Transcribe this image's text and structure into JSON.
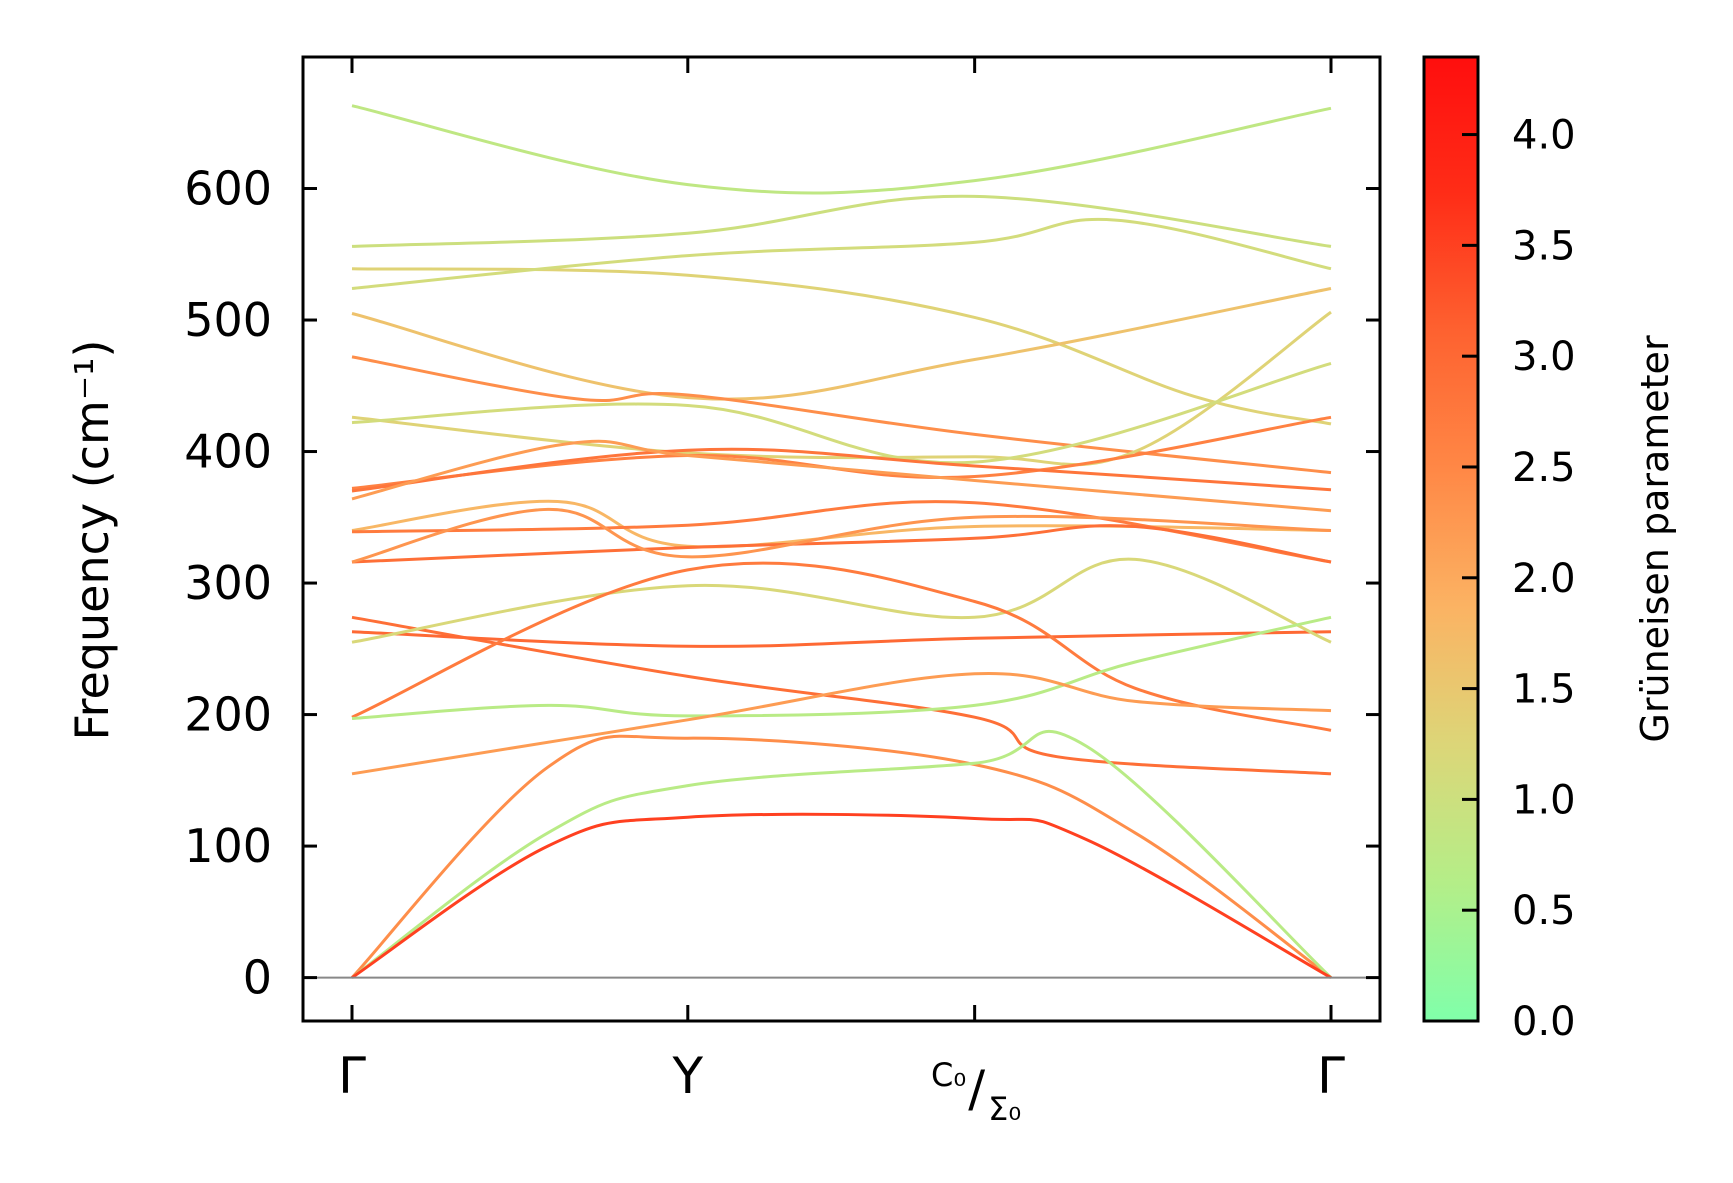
{
  "chart_data": {
    "type": "line",
    "subtype": "phonon-band-structure",
    "ylabel": "Frequency (cm⁻¹)",
    "ylim": [
      -33,
      700
    ],
    "yticks": [
      0,
      100,
      200,
      300,
      400,
      500,
      600
    ],
    "x_ticks": [
      {
        "label": "Γ",
        "x": 0.0
      },
      {
        "label": "Y",
        "x": 0.343
      },
      {
        "label": "C₀/Σ₀",
        "x": 0.636
      },
      {
        "label": "Γ",
        "x": 1.0
      }
    ],
    "grid": false,
    "zero_line": true,
    "colorbar": {
      "label": "Grüneisen parameter",
      "range": [
        0.0,
        4.35
      ],
      "ticks": [
        "0.0",
        "0.5",
        "1.0",
        "1.5",
        "2.0",
        "2.5",
        "3.0",
        "3.5",
        "4.0"
      ],
      "colormap": [
        "#80ffaa",
        "#b4ee88",
        "#dcd678",
        "#fbb363",
        "#ff8846",
        "#fe6230",
        "#ff2d17",
        "#ff0e0e"
      ]
    },
    "series": [
      {
        "points": [
          [
            0,
            663
          ],
          [
            0.343,
            603
          ],
          [
            0.636,
            606
          ],
          [
            1,
            661
          ]
        ],
        "gamma": 0.8
      },
      {
        "points": [
          [
            0,
            556
          ],
          [
            0.343,
            566
          ],
          [
            0.636,
            594
          ],
          [
            1,
            556
          ]
        ],
        "gamma": 1.0
      },
      {
        "points": [
          [
            0,
            539
          ],
          [
            0.343,
            534
          ],
          [
            0.636,
            502
          ],
          [
            0.86,
            442
          ],
          [
            1,
            421
          ]
        ],
        "gamma": 1.3
      },
      {
        "points": [
          [
            0,
            524
          ],
          [
            0.343,
            549
          ],
          [
            0.636,
            559
          ],
          [
            0.78,
            576
          ],
          [
            1,
            539
          ]
        ],
        "gamma": 1.1
      },
      {
        "points": [
          [
            0,
            505
          ],
          [
            0.343,
            441
          ],
          [
            0.636,
            470
          ],
          [
            1,
            524
          ]
        ],
        "gamma": 1.6
      },
      {
        "points": [
          [
            0,
            472
          ],
          [
            0.23,
            440
          ],
          [
            0.343,
            443
          ],
          [
            0.636,
            413
          ],
          [
            1,
            384
          ]
        ],
        "gamma": 2.4
      },
      {
        "points": [
          [
            0,
            426
          ],
          [
            0.343,
            399
          ],
          [
            0.636,
            396
          ],
          [
            0.8,
            400
          ],
          [
            1,
            506
          ]
        ],
        "gamma": 1.3
      },
      {
        "points": [
          [
            0,
            422
          ],
          [
            0.343,
            435
          ],
          [
            0.636,
            392
          ],
          [
            1,
            467
          ]
        ],
        "gamma": 1.1
      },
      {
        "points": [
          [
            0,
            372
          ],
          [
            0.343,
            397
          ],
          [
            0.636,
            381
          ],
          [
            1,
            426
          ]
        ],
        "gamma": 2.6
      },
      {
        "points": [
          [
            0,
            370
          ],
          [
            0.343,
            401
          ],
          [
            0.636,
            389
          ],
          [
            1,
            371
          ]
        ],
        "gamma": 2.8
      },
      {
        "points": [
          [
            0,
            364
          ],
          [
            0.22,
            406
          ],
          [
            0.343,
            397
          ],
          [
            0.636,
            378
          ],
          [
            1,
            355
          ]
        ],
        "gamma": 2.2
      },
      {
        "points": [
          [
            0,
            340
          ],
          [
            0.21,
            362
          ],
          [
            0.343,
            328
          ],
          [
            0.636,
            343
          ],
          [
            1,
            340
          ]
        ],
        "gamma": 1.8
      },
      {
        "points": [
          [
            0,
            339
          ],
          [
            0.343,
            344
          ],
          [
            0.636,
            361
          ],
          [
            1,
            316
          ]
        ],
        "gamma": 2.7
      },
      {
        "points": [
          [
            0,
            316
          ],
          [
            0.343,
            327
          ],
          [
            0.636,
            334
          ],
          [
            0.8,
            343
          ],
          [
            1,
            316
          ]
        ],
        "gamma": 2.9
      },
      {
        "points": [
          [
            0,
            316
          ],
          [
            0.2,
            356
          ],
          [
            0.343,
            320
          ],
          [
            0.636,
            350
          ],
          [
            1,
            340
          ]
        ],
        "gamma": 2.3
      },
      {
        "points": [
          [
            0,
            274
          ],
          [
            0.343,
            229
          ],
          [
            0.636,
            198
          ],
          [
            0.72,
            168
          ],
          [
            1,
            155
          ]
        ],
        "gamma": 2.9
      },
      {
        "points": [
          [
            0,
            263
          ],
          [
            0.343,
            252
          ],
          [
            0.636,
            258
          ],
          [
            1,
            263
          ]
        ],
        "gamma": 3.0
      },
      {
        "points": [
          [
            0,
            255
          ],
          [
            0.343,
            298
          ],
          [
            0.636,
            274
          ],
          [
            0.8,
            318
          ],
          [
            1,
            255
          ]
        ],
        "gamma": 1.2
      },
      {
        "points": [
          [
            0,
            198
          ],
          [
            0.343,
            310
          ],
          [
            0.636,
            286
          ],
          [
            0.8,
            220
          ],
          [
            1,
            188
          ]
        ],
        "gamma": 2.7
      },
      {
        "points": [
          [
            0,
            197
          ],
          [
            0.2,
            207
          ],
          [
            0.343,
            199
          ],
          [
            0.636,
            207
          ],
          [
            0.8,
            240
          ],
          [
            1,
            274
          ]
        ],
        "gamma": 0.7
      },
      {
        "points": [
          [
            0,
            155
          ],
          [
            0.343,
            196
          ],
          [
            0.636,
            231
          ],
          [
            0.8,
            210
          ],
          [
            1,
            203
          ]
        ],
        "gamma": 2.2
      },
      {
        "points": [
          [
            0,
            0
          ],
          [
            0.2,
            160
          ],
          [
            0.343,
            182
          ],
          [
            0.636,
            162
          ],
          [
            0.8,
            110
          ],
          [
            1,
            0
          ]
        ],
        "gamma": 2.4
      },
      {
        "points": [
          [
            0,
            0
          ],
          [
            0.2,
            110
          ],
          [
            0.343,
            146
          ],
          [
            0.636,
            163
          ],
          [
            0.75,
            176
          ],
          [
            1,
            0
          ]
        ],
        "gamma": 0.7
      },
      {
        "points": [
          [
            0,
            0
          ],
          [
            0.2,
            100
          ],
          [
            0.343,
            122
          ],
          [
            0.636,
            121
          ],
          [
            0.75,
            105
          ],
          [
            1,
            0
          ]
        ],
        "gamma": 3.5
      }
    ]
  }
}
